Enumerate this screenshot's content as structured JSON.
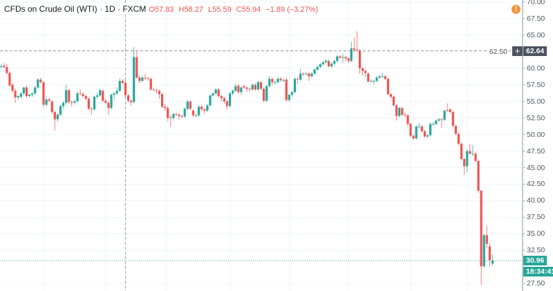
{
  "header": {
    "title": "CFDs on Crude Oil (WTI) · 1D · FXCM",
    "open": "O57.83",
    "high": "H58.27",
    "low": "L55.59",
    "close": "C55.94",
    "change": "−1.89 (−3.27%)"
  },
  "price_axis": {
    "crosshair_price": "62.64",
    "last_price": "30.96",
    "countdown": "18:34:41",
    "alert_icon": "exclamation-icon"
  },
  "colors": {
    "up": "#26a69a",
    "down": "#ef5350",
    "grid": "#f0f3fa",
    "crosshair_label": "#4c525e",
    "alert": "#f7943a"
  },
  "chart_data": {
    "type": "candlestick",
    "symbol": "CFDs on Crude Oil (WTI)",
    "interval": "1D",
    "ylim": [
      27.5,
      70
    ],
    "yticks": [
      "70.00",
      "67.50",
      "65.00",
      "62.50",
      "60.00",
      "57.50",
      "55.00",
      "52.50",
      "50.00",
      "47.50",
      "45.00",
      "42.50",
      "40.00",
      "37.50",
      "35.00",
      "32.50",
      "27.50"
    ],
    "grid": true,
    "crosshair": {
      "bar_index": 44,
      "price": 62.64
    },
    "last_price": 30.96,
    "ohlc": [
      [
        60.2,
        60.6,
        60.0,
        60.3
      ],
      [
        60.4,
        60.8,
        60.0,
        60.2
      ],
      [
        60.2,
        60.7,
        59.0,
        59.3
      ],
      [
        59.3,
        59.5,
        57.2,
        57.4
      ],
      [
        57.5,
        57.8,
        56.3,
        56.6
      ],
      [
        56.6,
        56.9,
        54.8,
        55.6
      ],
      [
        55.6,
        56.0,
        55.3,
        55.8
      ],
      [
        55.7,
        56.5,
        55.5,
        56.2
      ],
      [
        56.2,
        57.2,
        55.9,
        57.1
      ],
      [
        57.1,
        57.4,
        55.5,
        55.8
      ],
      [
        55.8,
        56.2,
        55.6,
        56.0
      ],
      [
        56.0,
        56.4,
        55.7,
        56.2
      ],
      [
        56.2,
        57.3,
        56.0,
        57.1
      ],
      [
        57.1,
        58.5,
        56.9,
        58.3
      ],
      [
        58.3,
        58.6,
        57.7,
        57.9
      ],
      [
        57.9,
        58.0,
        54.1,
        54.5
      ],
      [
        54.5,
        55.8,
        54.2,
        55.3
      ],
      [
        55.3,
        55.6,
        54.9,
        55.1
      ],
      [
        55.0,
        55.2,
        53.1,
        53.4
      ],
      [
        53.4,
        53.6,
        50.6,
        52.3
      ],
      [
        52.3,
        53.2,
        51.9,
        53.0
      ],
      [
        53.0,
        54.5,
        52.8,
        54.3
      ],
      [
        54.3,
        55.0,
        53.9,
        54.8
      ],
      [
        54.8,
        57.5,
        54.5,
        56.7
      ],
      [
        56.7,
        56.9,
        54.6,
        54.9
      ],
      [
        54.9,
        55.1,
        54.2,
        54.8
      ],
      [
        54.8,
        55.3,
        54.5,
        55.0
      ],
      [
        55.0,
        56.5,
        54.9,
        56.2
      ],
      [
        56.2,
        56.8,
        55.9,
        56.1
      ],
      [
        56.1,
        56.4,
        55.6,
        55.8
      ],
      [
        55.8,
        56.0,
        55.1,
        55.4
      ],
      [
        55.4,
        55.6,
        53.6,
        53.9
      ],
      [
        53.9,
        54.1,
        53.0,
        53.8
      ],
      [
        53.8,
        55.9,
        53.6,
        55.7
      ],
      [
        55.7,
        56.3,
        55.4,
        55.9
      ],
      [
        55.9,
        56.9,
        55.7,
        56.7
      ],
      [
        56.6,
        56.8,
        54.9,
        55.1
      ],
      [
        55.1,
        55.4,
        54.6,
        54.8
      ],
      [
        54.8,
        55.0,
        53.0,
        54.0
      ],
      [
        54.0,
        56.2,
        53.8,
        56.0
      ],
      [
        56.0,
        56.4,
        55.2,
        56.2
      ],
      [
        56.2,
        57.1,
        56.0,
        56.6
      ],
      [
        56.6,
        58.5,
        56.4,
        58.1
      ],
      [
        58.1,
        58.4,
        57.6,
        57.8
      ],
      [
        57.83,
        58.27,
        55.59,
        55.94
      ],
      [
        55.9,
        56.1,
        54.8,
        55.1
      ],
      [
        55.1,
        55.3,
        54.3,
        54.9
      ],
      [
        54.9,
        63.2,
        54.7,
        61.7
      ],
      [
        61.7,
        62.7,
        58.4,
        58.6
      ],
      [
        58.6,
        59.0,
        57.7,
        58.1
      ],
      [
        58.1,
        58.9,
        57.9,
        58.6
      ],
      [
        58.6,
        59.2,
        58.2,
        58.5
      ],
      [
        58.5,
        58.7,
        58.1,
        58.4
      ],
      [
        58.4,
        58.6,
        56.6,
        56.8
      ],
      [
        56.8,
        57.1,
        56.5,
        56.7
      ],
      [
        56.7,
        56.9,
        56.2,
        56.6
      ],
      [
        56.6,
        56.8,
        55.4,
        56.1
      ],
      [
        56.1,
        56.3,
        54.0,
        54.2
      ],
      [
        54.2,
        54.6,
        53.6,
        54.0
      ],
      [
        54.0,
        54.3,
        52.0,
        52.5
      ],
      [
        52.6,
        52.9,
        51.2,
        52.5
      ],
      [
        52.5,
        53.3,
        52.1,
        53.1
      ],
      [
        53.1,
        53.3,
        52.8,
        53.0
      ],
      [
        53.0,
        53.2,
        52.2,
        52.8
      ],
      [
        52.8,
        53.0,
        52.4,
        52.7
      ],
      [
        52.7,
        54.1,
        52.5,
        53.9
      ],
      [
        53.9,
        55.2,
        53.6,
        55.0
      ],
      [
        55.0,
        55.1,
        53.7,
        53.9
      ],
      [
        53.6,
        53.8,
        52.6,
        52.9
      ],
      [
        52.9,
        53.2,
        52.6,
        52.9
      ],
      [
        52.9,
        54.4,
        52.7,
        54.2
      ],
      [
        54.2,
        54.5,
        53.5,
        53.8
      ],
      [
        53.8,
        54.0,
        53.1,
        53.6
      ],
      [
        53.6,
        54.6,
        53.4,
        54.4
      ],
      [
        54.4,
        56.0,
        54.2,
        55.9
      ],
      [
        55.9,
        56.4,
        55.7,
        56.2
      ],
      [
        56.2,
        57.0,
        56.0,
        56.8
      ],
      [
        56.8,
        57.0,
        55.6,
        55.8
      ],
      [
        55.8,
        56.0,
        55.0,
        55.5
      ],
      [
        55.5,
        55.7,
        54.6,
        55.0
      ],
      [
        55.0,
        55.2,
        53.8,
        54.3
      ],
      [
        54.3,
        56.4,
        54.1,
        56.2
      ],
      [
        56.2,
        56.8,
        55.9,
        56.6
      ],
      [
        56.6,
        57.7,
        56.4,
        57.3
      ],
      [
        57.4,
        57.6,
        56.2,
        56.4
      ],
      [
        56.4,
        57.3,
        56.0,
        57.1
      ],
      [
        57.3,
        57.5,
        56.9,
        57.1
      ],
      [
        57.1,
        57.3,
        56.4,
        56.9
      ],
      [
        56.9,
        57.1,
        56.5,
        56.8
      ],
      [
        56.8,
        57.7,
        56.6,
        57.5
      ],
      [
        57.5,
        57.8,
        56.6,
        56.8
      ],
      [
        56.8,
        58.1,
        56.6,
        57.9
      ],
      [
        57.9,
        58.1,
        56.7,
        56.9
      ],
      [
        56.9,
        57.1,
        54.9,
        55.1
      ],
      [
        55.1,
        57.5,
        54.9,
        57.3
      ],
      [
        57.3,
        58.8,
        57.1,
        58.4
      ],
      [
        58.4,
        58.6,
        57.4,
        57.9
      ],
      [
        57.9,
        58.2,
        57.6,
        57.9
      ],
      [
        57.9,
        58.7,
        57.7,
        58.4
      ],
      [
        58.4,
        58.7,
        57.9,
        58.2
      ],
      [
        58.2,
        58.5,
        57.9,
        58.2
      ],
      [
        58.3,
        58.5,
        55.0,
        55.2
      ],
      [
        55.2,
        56.2,
        55.0,
        56.0
      ],
      [
        56.0,
        56.6,
        55.7,
        56.4
      ],
      [
        56.4,
        58.6,
        56.2,
        58.4
      ],
      [
        58.4,
        58.7,
        57.6,
        58.3
      ],
      [
        58.3,
        59.9,
        58.0,
        59.2
      ],
      [
        59.2,
        59.4,
        58.8,
        59.1
      ],
      [
        59.1,
        59.4,
        58.9,
        59.2
      ],
      [
        59.2,
        59.4,
        58.1,
        58.8
      ],
      [
        58.8,
        59.4,
        58.6,
        59.2
      ],
      [
        59.2,
        60.0,
        59.0,
        59.8
      ],
      [
        59.8,
        60.4,
        59.6,
        60.2
      ],
      [
        60.2,
        60.8,
        60.0,
        60.6
      ],
      [
        60.6,
        61.1,
        60.4,
        60.9
      ],
      [
        60.9,
        61.4,
        60.7,
        61.1
      ],
      [
        61.1,
        61.3,
        60.1,
        60.3
      ],
      [
        60.3,
        60.9,
        60.1,
        60.7
      ],
      [
        60.7,
        61.3,
        60.5,
        61.1
      ],
      [
        61.1,
        62.0,
        60.9,
        61.8
      ],
      [
        61.8,
        62.0,
        61.4,
        61.6
      ],
      [
        61.6,
        62.2,
        60.8,
        61.7
      ],
      [
        61.7,
        61.9,
        61.0,
        61.5
      ],
      [
        61.5,
        61.7,
        60.8,
        61.1
      ],
      [
        61.1,
        64.0,
        60.9,
        63.0
      ],
      [
        63.0,
        64.7,
        62.4,
        62.8
      ],
      [
        62.8,
        65.6,
        62.5,
        62.7
      ],
      [
        62.7,
        62.9,
        59.2,
        60.0
      ],
      [
        60.0,
        60.2,
        58.9,
        59.6
      ],
      [
        59.6,
        59.8,
        58.7,
        59.3
      ],
      [
        59.2,
        59.4,
        57.8,
        58.0
      ],
      [
        58.1,
        58.3,
        57.9,
        58.1
      ],
      [
        58.1,
        58.3,
        57.6,
        58.1
      ],
      [
        58.1,
        58.8,
        57.9,
        58.6
      ],
      [
        58.6,
        59.0,
        58.4,
        58.8
      ],
      [
        58.8,
        59.3,
        58.6,
        58.8
      ],
      [
        58.8,
        59.0,
        58.2,
        58.4
      ],
      [
        58.4,
        58.6,
        55.9,
        56.1
      ],
      [
        56.1,
        56.3,
        55.4,
        55.7
      ],
      [
        55.7,
        55.9,
        54.2,
        54.4
      ],
      [
        54.4,
        54.6,
        52.1,
        52.8
      ],
      [
        52.8,
        54.2,
        52.6,
        54.0
      ],
      [
        54.0,
        54.2,
        52.8,
        53.0
      ],
      [
        53.0,
        53.3,
        52.7,
        52.9
      ],
      [
        52.9,
        53.1,
        51.2,
        51.6
      ],
      [
        51.6,
        51.8,
        49.6,
        49.8
      ],
      [
        49.8,
        50.0,
        49.2,
        49.4
      ],
      [
        49.4,
        51.4,
        49.2,
        51.2
      ],
      [
        51.2,
        51.8,
        51.0,
        51.2
      ],
      [
        51.2,
        51.5,
        50.3,
        50.5
      ],
      [
        50.5,
        50.7,
        49.5,
        49.7
      ],
      [
        49.7,
        50.0,
        49.5,
        49.9
      ],
      [
        49.9,
        51.8,
        49.7,
        51.6
      ],
      [
        51.6,
        51.9,
        51.4,
        51.6
      ],
      [
        51.6,
        52.3,
        51.4,
        52.1
      ],
      [
        52.1,
        52.5,
        51.9,
        52.3
      ],
      [
        52.3,
        52.5,
        51.0,
        52.2
      ],
      [
        52.2,
        53.8,
        52.0,
        53.6
      ],
      [
        53.7,
        54.7,
        53.4,
        53.6
      ],
      [
        53.8,
        54.0,
        53.2,
        53.4
      ],
      [
        53.4,
        53.6,
        51.1,
        51.3
      ],
      [
        51.3,
        51.5,
        49.9,
        50.1
      ],
      [
        50.1,
        50.3,
        48.4,
        48.6
      ],
      [
        48.6,
        48.8,
        46.1,
        46.3
      ],
      [
        46.3,
        46.5,
        43.9,
        45.2
      ],
      [
        45.2,
        47.7,
        44.3,
        47.5
      ],
      [
        47.5,
        48.6,
        47.0,
        47.1
      ],
      [
        47.1,
        48.4,
        46.8,
        47.1
      ],
      [
        47.1,
        47.4,
        45.8,
        46.0
      ],
      [
        46.0,
        46.2,
        41.2,
        41.5
      ],
      [
        41.5,
        41.6,
        27.3,
        30.1
      ],
      [
        30.1,
        35.0,
        29.9,
        34.8
      ],
      [
        34.8,
        36.3,
        32.8,
        33.5
      ],
      [
        33.1,
        33.6,
        30.0,
        31.0
      ],
      [
        30.5,
        31.9,
        30.2,
        30.96
      ]
    ]
  }
}
